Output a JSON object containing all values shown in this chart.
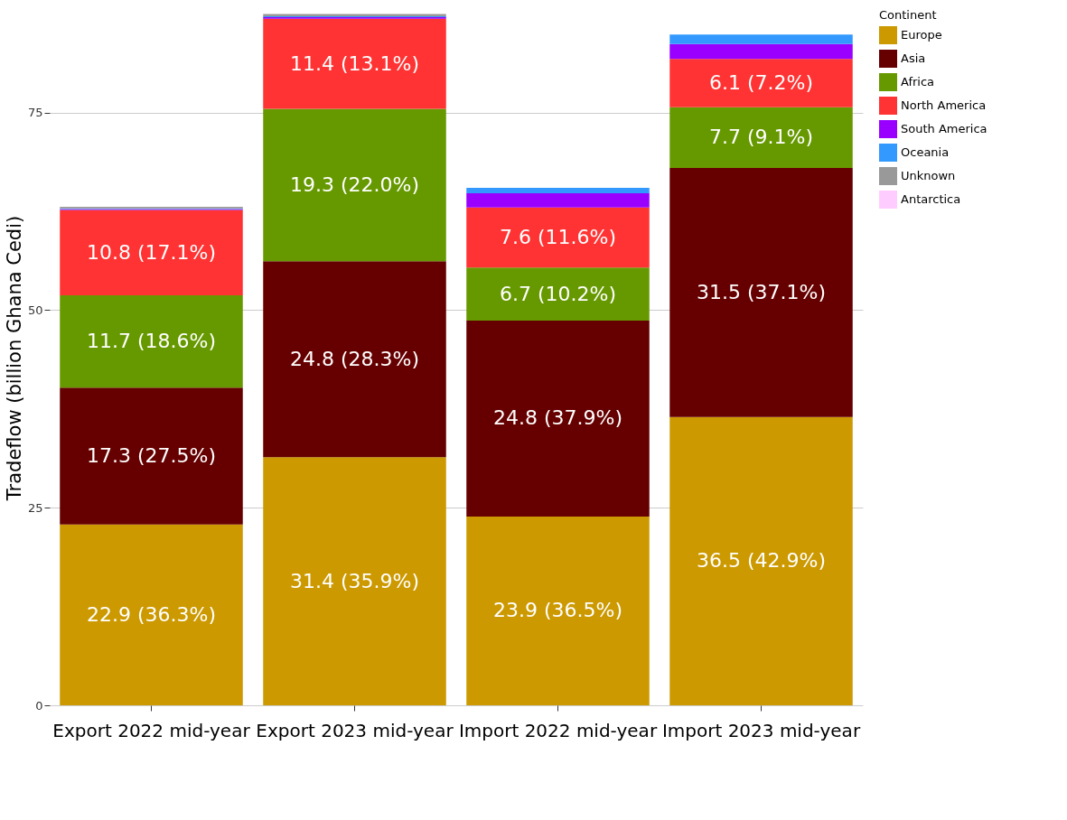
{
  "chart_data": {
    "type": "bar",
    "stacked": true,
    "ylabel": "Tradeflow (billion Ghana Cedi)",
    "legend_title": "Continent",
    "legend": "right",
    "grid": "y",
    "categories": [
      "Export 2022\nmid-year",
      "Export 2023\nmid-year",
      "Import 2022\nmid-year",
      "Import 2023\nmid-year"
    ],
    "ylim": [
      0,
      88
    ],
    "yticks": [
      0,
      25,
      50,
      75
    ],
    "series": [
      {
        "name": "Europe",
        "color": "#cc9900",
        "values": [
          22.9,
          31.4,
          23.9,
          36.5
        ],
        "value_labels": [
          "22.9 (36.3%)",
          "31.4 (35.9%)",
          "23.9 (36.5%)",
          "36.5 (42.9%)"
        ]
      },
      {
        "name": "Asia",
        "color": "#660000",
        "values": [
          17.3,
          24.8,
          24.8,
          31.5
        ],
        "value_labels": [
          "17.3 (27.5%)",
          "24.8 (28.3%)",
          "24.8 (37.9%)",
          "31.5 (37.1%)"
        ]
      },
      {
        "name": "Africa",
        "color": "#669900",
        "values": [
          11.7,
          19.3,
          6.7,
          7.7
        ],
        "value_labels": [
          "11.7 (18.6%)",
          "19.3 (22.0%)",
          "6.7 (10.2%)",
          "7.7 (9.1%)"
        ]
      },
      {
        "name": "North America",
        "color": "#ff3333",
        "values": [
          10.8,
          11.4,
          7.6,
          6.1
        ],
        "value_labels": [
          "10.8 (17.1%)",
          "11.4 (13.1%)",
          "7.6 (11.6%)",
          "6.1 (7.2%)"
        ]
      },
      {
        "name": "South America",
        "color": "#9900ff",
        "values": [
          0.1,
          0.2,
          1.8,
          1.9
        ]
      },
      {
        "name": "Oceania",
        "color": "#3399ff",
        "values": [
          0.1,
          0.1,
          0.7,
          1.2
        ]
      },
      {
        "name": "Unknown",
        "color": "#999999",
        "values": [
          0.2,
          0.3,
          null,
          null
        ]
      },
      {
        "name": "Antarctica",
        "color": "#ffccff",
        "values": [
          null,
          null,
          null,
          null
        ]
      }
    ]
  }
}
